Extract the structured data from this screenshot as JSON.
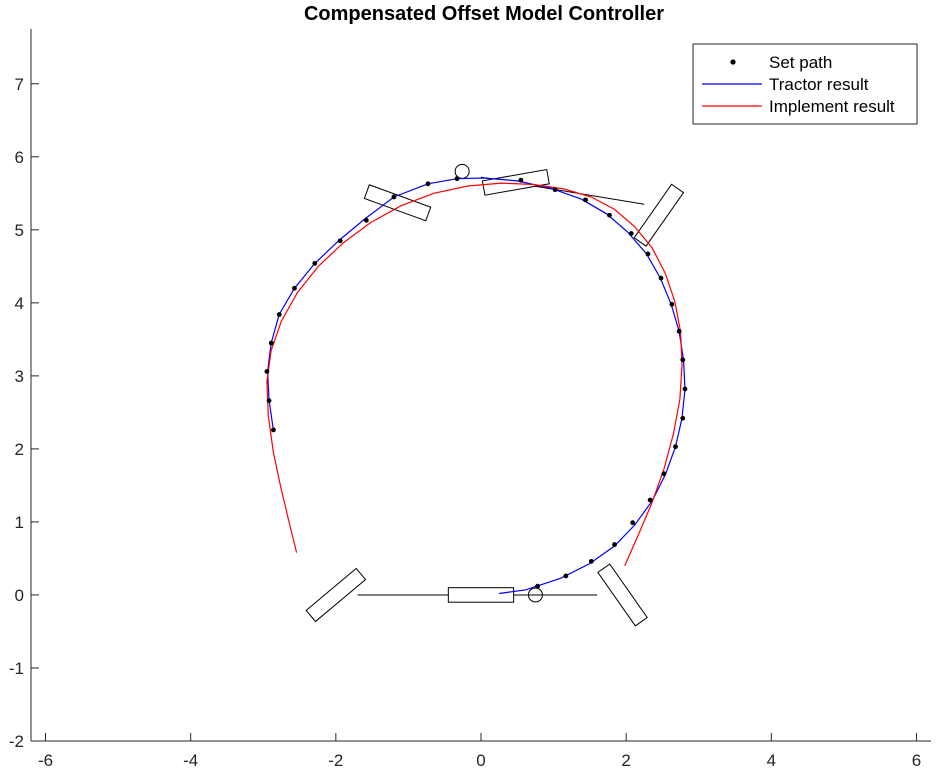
{
  "chart_data": {
    "type": "line",
    "title": "Compensated Offset Model Controller",
    "xlim": [
      -6.2,
      6.2
    ],
    "ylim": [
      -2,
      7.75
    ],
    "xticks": [
      -6,
      -4,
      -2,
      0,
      2,
      4,
      6
    ],
    "yticks": [
      -2,
      -1,
      0,
      1,
      2,
      3,
      4,
      5,
      6,
      7
    ],
    "grid": false,
    "legend_position": "top-right",
    "legend": [
      {
        "label": "Set path",
        "color": "#000000",
        "marker": "dot"
      },
      {
        "label": "Tractor result",
        "color": "#0000ff",
        "marker": "line"
      },
      {
        "label": "Implement result",
        "color": "#ff0000",
        "marker": "line"
      }
    ],
    "series": [
      {
        "name": "Set path",
        "color": "#000000",
        "style": "markers",
        "x": [
          0.78,
          1.17,
          1.52,
          1.84,
          2.09,
          2.33,
          2.52,
          2.68,
          2.78,
          2.81,
          2.78,
          2.73,
          2.63,
          2.48,
          2.3,
          2.07,
          1.77,
          1.44,
          1.02,
          0.55,
          -0.33,
          -0.73,
          -1.2,
          -1.58,
          -1.94,
          -2.29,
          -2.57,
          -2.78,
          -2.89,
          -2.95,
          -2.92,
          -2.86
        ],
        "y": [
          0.12,
          0.26,
          0.46,
          0.69,
          0.99,
          1.3,
          1.66,
          2.03,
          2.42,
          2.82,
          3.22,
          3.61,
          3.98,
          4.34,
          4.67,
          4.95,
          5.2,
          5.41,
          5.55,
          5.68,
          5.7,
          5.63,
          5.45,
          5.13,
          4.85,
          4.54,
          4.2,
          3.84,
          3.45,
          3.06,
          2.66,
          2.26
        ]
      },
      {
        "name": "Tractor result",
        "color": "#0000ff",
        "style": "line",
        "x": [
          0.25,
          0.62,
          1.1,
          1.5,
          1.84,
          2.12,
          2.36,
          2.54,
          2.68,
          2.77,
          2.81,
          2.79,
          2.73,
          2.62,
          2.47,
          2.28,
          2.02,
          1.73,
          1.38,
          0.96,
          0.5,
          0.05,
          -0.33,
          -0.73,
          -1.2,
          -1.6,
          -1.95,
          -2.29,
          -2.57,
          -2.78,
          -2.89,
          -2.94,
          -2.92,
          -2.86
        ],
        "y": [
          0.02,
          0.07,
          0.23,
          0.43,
          0.67,
          0.96,
          1.29,
          1.65,
          2.03,
          2.42,
          2.82,
          3.22,
          3.61,
          3.98,
          4.34,
          4.67,
          4.97,
          5.22,
          5.42,
          5.57,
          5.67,
          5.71,
          5.7,
          5.63,
          5.45,
          5.15,
          4.86,
          4.54,
          4.2,
          3.84,
          3.45,
          3.06,
          2.66,
          2.26
        ]
      },
      {
        "name": "Implement result",
        "color": "#ff0000",
        "style": "line",
        "x": [
          1.98,
          2.15,
          2.35,
          2.52,
          2.65,
          2.74,
          2.77,
          2.75,
          2.67,
          2.54,
          2.36,
          2.12,
          1.84,
          1.52,
          1.14,
          0.72,
          0.28,
          -0.18,
          -0.65,
          -1.1,
          -1.52,
          -1.9,
          -2.24,
          -2.53,
          -2.75,
          -2.89,
          -2.95,
          -2.93,
          -2.86,
          -2.76,
          -2.65,
          -2.54
        ],
        "y": [
          0.4,
          0.78,
          1.25,
          1.72,
          2.2,
          2.68,
          3.15,
          3.6,
          4.02,
          4.4,
          4.75,
          5.04,
          5.28,
          5.45,
          5.56,
          5.62,
          5.64,
          5.6,
          5.5,
          5.33,
          5.1,
          4.82,
          4.5,
          4.14,
          3.75,
          3.35,
          2.92,
          2.45,
          1.95,
          1.48,
          1.02,
          0.58
        ]
      }
    ],
    "annotations": {
      "lines": [
        {
          "from": [
            -1.7,
            0.0
          ],
          "to": [
            1.6,
            0.0
          ]
        },
        {
          "from": [
            0.0,
            5.72
          ],
          "to": [
            2.25,
            5.35
          ]
        }
      ],
      "circles": [
        {
          "cx": 0.75,
          "cy": 0.0
        },
        {
          "cx": -0.26,
          "cy": 5.8
        }
      ],
      "rectangles": [
        {
          "cx": 0.0,
          "cy": 0.0,
          "w": 0.9,
          "h": 0.2,
          "angle": 0
        },
        {
          "cx": 1.95,
          "cy": 0.0,
          "w": 0.9,
          "h": 0.2,
          "angle": -55
        },
        {
          "cx": -2.0,
          "cy": 0.0,
          "w": 0.9,
          "h": 0.2,
          "angle": 40
        },
        {
          "cx": 0.48,
          "cy": 5.65,
          "w": 0.9,
          "h": 0.2,
          "angle": 10
        },
        {
          "cx": -1.15,
          "cy": 5.37,
          "w": 0.9,
          "h": 0.2,
          "angle": -20
        },
        {
          "cx": 2.45,
          "cy": 5.2,
          "w": 0.9,
          "h": 0.2,
          "angle": 55
        }
      ]
    }
  }
}
